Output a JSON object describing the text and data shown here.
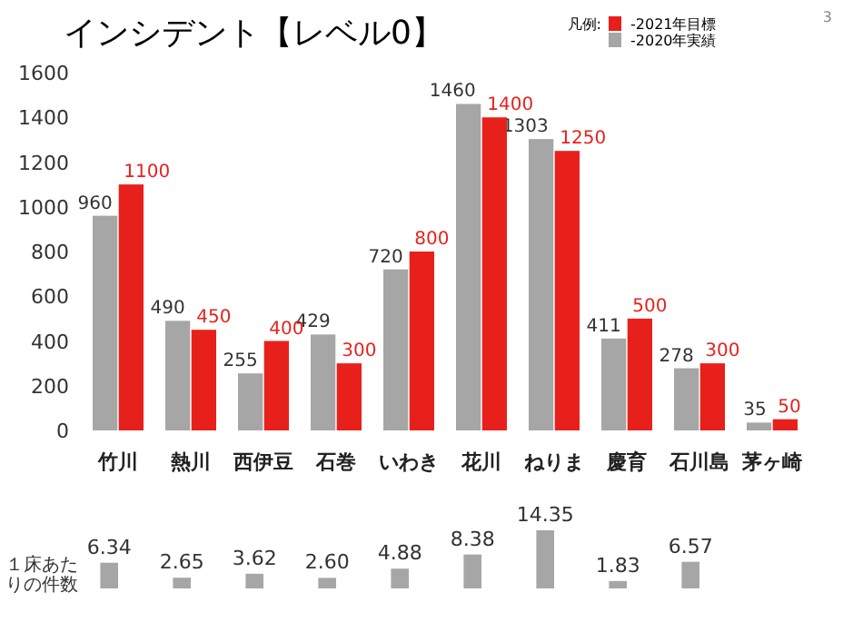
{
  "chart_data": [
    {
      "type": "bar",
      "title": "インシデント【レベル0】",
      "categories": [
        "竹川",
        "熱川",
        "西伊豆",
        "石巻",
        "いわき",
        "花川",
        "ねりま",
        "慶育",
        "石川島",
        "茅ヶ崎"
      ],
      "series": [
        {
          "name": "-2020年実績",
          "color": "#a6a6a6",
          "values": [
            960,
            490,
            255,
            429,
            720,
            1460,
            1303,
            411,
            278,
            35
          ]
        },
        {
          "name": "-2021年目標",
          "color": "#e8201b",
          "values": [
            1100,
            450,
            400,
            300,
            800,
            1400,
            1250,
            500,
            300,
            50
          ]
        }
      ],
      "ylim": [
        0,
        1600
      ],
      "yticks": [
        0,
        200,
        400,
        600,
        800,
        1000,
        1200,
        1400,
        1600
      ],
      "data_labels": true,
      "legend": "top right",
      "legend_title": "凡例:",
      "annotations": [
        "3"
      ]
    },
    {
      "type": "bar",
      "ylabel": "１床あたりの件数",
      "categories": [
        null,
        null,
        null,
        null,
        null,
        null,
        null,
        null,
        null,
        null
      ],
      "values": [
        6.34,
        2.65,
        3.62,
        2.6,
        4.88,
        8.38,
        14.35,
        1.83,
        6.57,
        null
      ],
      "value_labels": [
        "6.34",
        "2.65",
        "3.62",
        "2.60",
        "4.88",
        "8.38",
        "14.35",
        "1.83",
        "6.57",
        null
      ],
      "color": "#a6a6a6"
    }
  ]
}
